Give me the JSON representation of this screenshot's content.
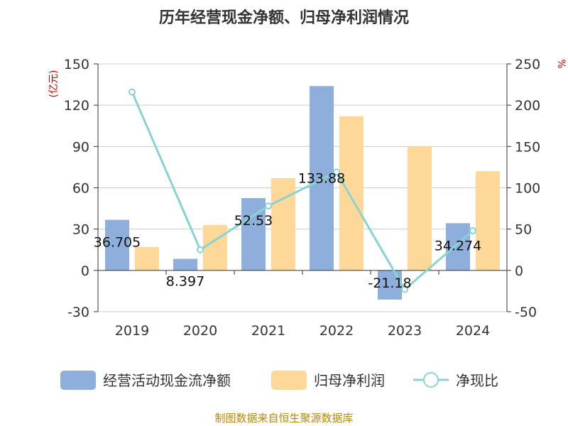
{
  "chart_data": {
    "type": "bar",
    "title": "历年经营现金净额、归母净利润情况",
    "categories": [
      "2019",
      "2020",
      "2021",
      "2022",
      "2023",
      "2024"
    ],
    "series": [
      {
        "name": "经营活动现金流净额",
        "type": "bar",
        "axis": "left",
        "color": "#8eaedb",
        "values": [
          36.705,
          8.397,
          52.53,
          133.88,
          -21.18,
          34.274
        ],
        "labels": [
          "36.705",
          "8.397",
          "52.53",
          "133.88",
          "-21.18",
          "34.274"
        ]
      },
      {
        "name": "归母净利润",
        "type": "bar",
        "axis": "left",
        "color": "#fdd898",
        "values": [
          17,
          33,
          67,
          112,
          90,
          72
        ]
      },
      {
        "name": "净现比",
        "type": "line",
        "axis": "right",
        "color": "#8ad3d5",
        "values": [
          216,
          25,
          78,
          119,
          -23,
          48
        ]
      }
    ],
    "y_left": {
      "unit": "(亿元)",
      "ylim": [
        -30,
        150
      ],
      "ticks": [
        -30,
        0,
        30,
        60,
        90,
        120,
        150
      ]
    },
    "y_right": {
      "unit": "%",
      "ylim": [
        -50,
        250
      ],
      "ticks": [
        -50,
        0,
        50,
        100,
        150,
        200,
        250
      ]
    },
    "grid": true,
    "legend_position": "bottom"
  },
  "source_text": "制图数据来自恒生聚源数据库"
}
